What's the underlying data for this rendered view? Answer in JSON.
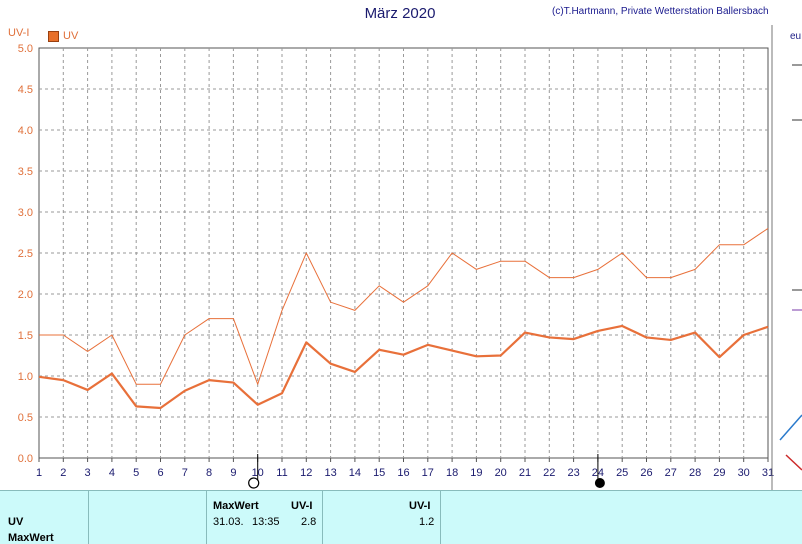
{
  "header": {
    "title": "März 2020",
    "credit": "(c)T.Hartmann, Private Wetterstation Ballersbach"
  },
  "legend": {
    "unit_label": "UV-I",
    "series_label": "UV"
  },
  "chart_data": {
    "type": "line",
    "title": "März 2020",
    "ylabel": "UV-I",
    "ylim": [
      0,
      5
    ],
    "yticks": [
      "0.0",
      "0.5",
      "1.0",
      "1.5",
      "2.0",
      "2.5",
      "3.0",
      "3.5",
      "4.0",
      "4.5",
      "5.0"
    ],
    "x": [
      1,
      2,
      3,
      4,
      5,
      6,
      7,
      8,
      9,
      10,
      11,
      12,
      13,
      14,
      15,
      16,
      17,
      18,
      19,
      20,
      21,
      22,
      23,
      24,
      25,
      26,
      27,
      28,
      29,
      30,
      31
    ],
    "grid": true,
    "series": [
      {
        "name": "",
        "color": "#e8703a",
        "values": [
          1.5,
          1.5,
          1.3,
          1.5,
          0.9,
          0.9,
          1.5,
          1.7,
          1.7,
          0.9,
          1.8,
          2.5,
          1.9,
          1.8,
          2.1,
          1.9,
          2.1,
          2.5,
          2.3,
          2.4,
          2.4,
          2.2,
          2.2,
          2.3,
          2.5,
          2.2,
          2.2,
          2.3,
          2.6,
          2.6,
          2.8
        ]
      },
      {
        "name": "UV",
        "color": "#e8703a",
        "values": [
          0.99,
          0.95,
          0.83,
          1.03,
          0.63,
          0.61,
          0.82,
          0.95,
          0.92,
          0.65,
          0.79,
          1.41,
          1.15,
          1.05,
          1.32,
          1.26,
          1.38,
          1.31,
          1.24,
          1.25,
          1.53,
          1.47,
          1.45,
          1.55,
          1.61,
          1.47,
          1.44,
          1.53,
          1.23,
          1.5,
          1.6
        ]
      }
    ],
    "markers": {
      "full_moon_day": 10,
      "new_moon_day": 24
    }
  },
  "footer": {
    "row_uv": "UV",
    "row_maxwert": "MaxWert",
    "col_maxwert_header": "MaxWert",
    "col_uvi_header": "UV-I",
    "col_uvi2_header": "UV-I",
    "maxwert_date": "31.03.",
    "maxwert_time": "13:35",
    "maxwert_value": "2.8",
    "avg_value": "1.2"
  }
}
